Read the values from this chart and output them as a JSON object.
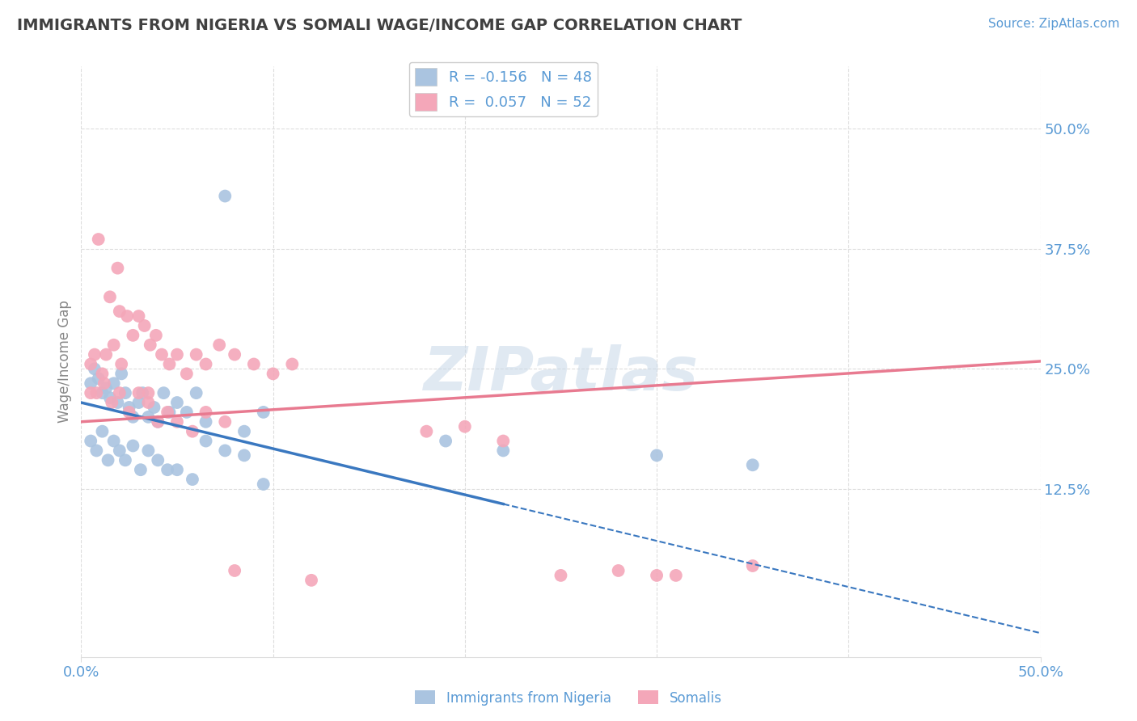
{
  "title": "IMMIGRANTS FROM NIGERIA VS SOMALI WAGE/INCOME GAP CORRELATION CHART",
  "source": "Source: ZipAtlas.com",
  "ylabel": "Wage/Income Gap",
  "legend_r1": "R = -0.156",
  "legend_n1": "N = 48",
  "legend_r2": "R =  0.057",
  "legend_n2": "N = 52",
  "nigeria_color": "#aac4e0",
  "somali_color": "#f4a7b9",
  "nigeria_line_color": "#3a78c0",
  "somali_line_color": "#e87a90",
  "watermark": "ZIPatlas",
  "watermark_color": "#c8d8e8",
  "bottom_legend_nigeria": "Immigrants from Nigeria",
  "bottom_legend_somali": "Somalis",
  "nigeria_scatter_x": [
    0.005,
    0.007,
    0.009,
    0.011,
    0.013,
    0.015,
    0.017,
    0.019,
    0.021,
    0.023,
    0.025,
    0.027,
    0.03,
    0.032,
    0.035,
    0.038,
    0.04,
    0.043,
    0.046,
    0.05,
    0.055,
    0.06,
    0.065,
    0.075,
    0.085,
    0.095,
    0.005,
    0.008,
    0.011,
    0.014,
    0.017,
    0.02,
    0.023,
    0.027,
    0.031,
    0.035,
    0.04,
    0.045,
    0.05,
    0.058,
    0.065,
    0.075,
    0.085,
    0.095,
    0.19,
    0.22,
    0.3,
    0.35
  ],
  "nigeria_scatter_y": [
    0.235,
    0.25,
    0.24,
    0.225,
    0.23,
    0.22,
    0.235,
    0.215,
    0.245,
    0.225,
    0.21,
    0.2,
    0.215,
    0.225,
    0.2,
    0.21,
    0.195,
    0.225,
    0.205,
    0.215,
    0.205,
    0.225,
    0.195,
    0.43,
    0.185,
    0.205,
    0.175,
    0.165,
    0.185,
    0.155,
    0.175,
    0.165,
    0.155,
    0.17,
    0.145,
    0.165,
    0.155,
    0.145,
    0.145,
    0.135,
    0.175,
    0.165,
    0.16,
    0.13,
    0.175,
    0.165,
    0.16,
    0.15
  ],
  "somali_scatter_x": [
    0.005,
    0.007,
    0.009,
    0.011,
    0.013,
    0.015,
    0.017,
    0.019,
    0.021,
    0.024,
    0.027,
    0.03,
    0.033,
    0.036,
    0.039,
    0.042,
    0.046,
    0.05,
    0.055,
    0.06,
    0.065,
    0.072,
    0.08,
    0.09,
    0.1,
    0.11,
    0.005,
    0.008,
    0.012,
    0.016,
    0.02,
    0.025,
    0.03,
    0.035,
    0.04,
    0.045,
    0.05,
    0.058,
    0.065,
    0.075,
    0.18,
    0.2,
    0.22,
    0.25,
    0.28,
    0.3,
    0.31,
    0.35,
    0.02,
    0.035,
    0.08,
    0.12
  ],
  "somali_scatter_y": [
    0.255,
    0.265,
    0.385,
    0.245,
    0.265,
    0.325,
    0.275,
    0.355,
    0.255,
    0.305,
    0.285,
    0.305,
    0.295,
    0.275,
    0.285,
    0.265,
    0.255,
    0.265,
    0.245,
    0.265,
    0.255,
    0.275,
    0.265,
    0.255,
    0.245,
    0.255,
    0.225,
    0.225,
    0.235,
    0.215,
    0.225,
    0.205,
    0.225,
    0.215,
    0.195,
    0.205,
    0.195,
    0.185,
    0.205,
    0.195,
    0.185,
    0.19,
    0.175,
    0.035,
    0.04,
    0.035,
    0.035,
    0.045,
    0.31,
    0.225,
    0.04,
    0.03
  ],
  "grid_color": "#dddddd",
  "background_color": "#ffffff",
  "title_color": "#404040",
  "tick_label_color": "#5b9bd5",
  "xlim": [
    0.0,
    0.5
  ],
  "ylim": [
    -0.05,
    0.565
  ]
}
